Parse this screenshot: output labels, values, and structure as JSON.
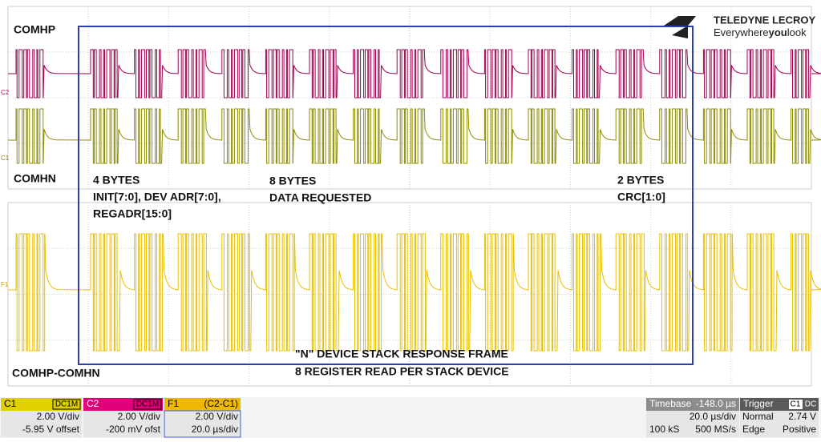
{
  "logo": {
    "brand": "TELEDYNE LECROY",
    "tagline": [
      "Everywhere",
      "you",
      "look"
    ]
  },
  "trace_labels": {
    "top": "COMHP",
    "middle": "COMHN",
    "bottom": "COMHP-COMHN"
  },
  "trace_markers": [
    "C2",
    "C1",
    "F1"
  ],
  "annotations": {
    "request_header": [
      "4 BYTES",
      "INIT[7:0], DEV ADR[7:0],",
      "REGADR[15:0]"
    ],
    "request_data": [
      "8 BYTES",
      "DATA REQUESTED"
    ],
    "request_crc": [
      "2 BYTES",
      "CRC[1:0]"
    ],
    "response": [
      "\"N\" DEVICE STACK RESPONSE FRAME",
      "8 REGISTER READ PER STACK DEVICE"
    ]
  },
  "channels": [
    {
      "name": "C1",
      "coupling": "DC1M",
      "scale": "2.00 V/div",
      "offset": "-5.95 V offset"
    },
    {
      "name": "C2",
      "coupling": "DC1M",
      "scale": "2.00 V/div",
      "offset": "-200 mV ofst"
    },
    {
      "name": "F1",
      "coupling": "(C2-C1)",
      "scale": "2.00 V/div",
      "offset": "20.0 µs/div"
    }
  ],
  "timebase": {
    "label": "Timebase",
    "delay": "-148.0 µs",
    "per_div": "20.0 µs/div",
    "samples": "100 kS",
    "rate": "500 MS/s"
  },
  "trigger": {
    "label": "Trigger",
    "source": "C1",
    "coupling": "DC",
    "mode": "Normal",
    "level": "2.74 V",
    "type": "Edge",
    "slope": "Positive"
  }
}
